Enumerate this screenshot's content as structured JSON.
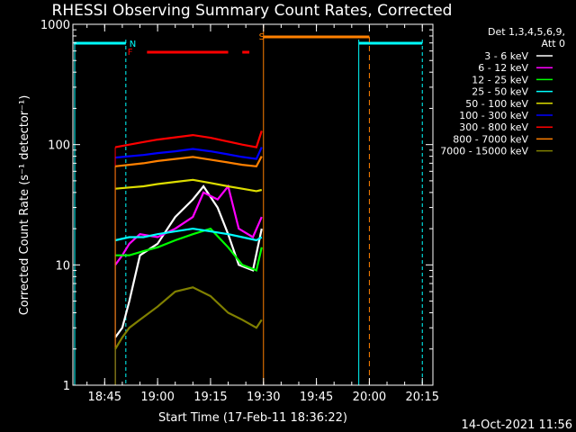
{
  "chart_data": {
    "type": "line",
    "title": "RHESSI Observing Summary Count Rates, Corrected",
    "xlabel": "Start Time (17-Feb-11 18:36:22)",
    "ylabel": "Corrected Count Rate (s⁻¹ detector⁻¹)",
    "yscale": "log",
    "ylim": [
      1,
      1000
    ],
    "xlim": [
      "18:36",
      "20:18"
    ],
    "x_ticks": [
      "18:45",
      "19:00",
      "19:15",
      "19:30",
      "19:45",
      "20:00",
      "20:15"
    ],
    "y_ticks": [
      "1",
      "10",
      "100",
      "1000"
    ],
    "legend_header": [
      "Det 1,3,4,5,6,9,",
      "Att 0"
    ],
    "legend_position": "right",
    "timestamp": "14-Oct-2021 11:56",
    "series": [
      {
        "name": "3 - 6 keV",
        "color": "#ffffff",
        "x": [
          "18:48",
          "18:50",
          "18:52",
          "18:55",
          "19:00",
          "19:05",
          "19:10",
          "19:13",
          "19:17",
          "19:20",
          "19:23",
          "19:27",
          "19:29.5"
        ],
        "values": [
          2.5,
          3,
          5,
          12,
          15,
          25,
          35,
          45,
          30,
          18,
          10,
          9,
          20
        ]
      },
      {
        "name": "6 - 12 keV",
        "color": "#ff00ff",
        "x": [
          "18:48",
          "18:50",
          "18:52",
          "18:55",
          "19:00",
          "19:05",
          "19:10",
          "19:13",
          "19:17",
          "19:20",
          "19:23",
          "19:27",
          "19:29.5"
        ],
        "values": [
          10,
          12,
          15,
          18,
          17,
          20,
          25,
          40,
          35,
          45,
          20,
          17,
          25
        ]
      },
      {
        "name": "12 - 25 keV",
        "color": "#00ff00",
        "x": [
          "18:48",
          "18:52",
          "18:56",
          "19:00",
          "19:05",
          "19:10",
          "19:15",
          "19:20",
          "19:24",
          "19:28",
          "19:29.5"
        ],
        "values": [
          12,
          12,
          13,
          14,
          16,
          18,
          20,
          14,
          10,
          9,
          14
        ]
      },
      {
        "name": "25 - 50 keV",
        "color": "#00ffff",
        "x": [
          "18:48",
          "18:52",
          "18:56",
          "19:00",
          "19:05",
          "19:10",
          "19:15",
          "19:20",
          "19:24",
          "19:28",
          "19:29.5"
        ],
        "values": [
          16,
          17,
          17,
          18,
          19,
          20,
          19,
          18,
          17,
          16,
          17
        ]
      },
      {
        "name": "50 - 100 keV",
        "color": "#dddd00",
        "x": [
          "18:48",
          "18:52",
          "18:56",
          "19:00",
          "19:05",
          "19:10",
          "19:15",
          "19:20",
          "19:24",
          "19:28",
          "19:29.5"
        ],
        "values": [
          43,
          44,
          45,
          47,
          49,
          51,
          48,
          45,
          43,
          41,
          42
        ]
      },
      {
        "name": "100 - 300 keV",
        "color": "#0000ff",
        "x": [
          "18:48",
          "18:52",
          "18:56",
          "19:00",
          "19:05",
          "19:10",
          "19:15",
          "19:20",
          "19:24",
          "19:28",
          "19:29.5"
        ],
        "values": [
          78,
          80,
          82,
          85,
          88,
          92,
          88,
          83,
          79,
          76,
          95
        ]
      },
      {
        "name": "300 - 800 keV",
        "color": "#ff0000",
        "x": [
          "18:48",
          "18:52",
          "18:56",
          "19:00",
          "19:05",
          "19:10",
          "19:15",
          "19:20",
          "19:24",
          "19:28",
          "19:29.5"
        ],
        "values": [
          95,
          100,
          105,
          110,
          115,
          120,
          114,
          106,
          100,
          95,
          130
        ]
      },
      {
        "name": "800 - 7000 keV",
        "color": "#ff8000",
        "x": [
          "18:48",
          "18:52",
          "18:56",
          "19:00",
          "19:05",
          "19:10",
          "19:15",
          "19:20",
          "19:24",
          "19:28",
          "19:29.5"
        ],
        "values": [
          66,
          68,
          70,
          73,
          76,
          79,
          75,
          71,
          68,
          66,
          80
        ]
      },
      {
        "name": "7000 - 15000 keV",
        "color": "#808000",
        "x": [
          "18:48",
          "18:50",
          "18:52",
          "18:55",
          "19:00",
          "19:05",
          "19:10",
          "19:15",
          "19:20",
          "19:24",
          "19:28",
          "19:29.5"
        ],
        "values": [
          2,
          2.5,
          3,
          3.5,
          4.5,
          6,
          6.5,
          5.5,
          4,
          3.5,
          3,
          3.5
        ]
      }
    ],
    "flags": {
      "night": {
        "label": "N",
        "color": "#00ffff"
      },
      "flare": {
        "label": "F",
        "color": "#ff0000"
      },
      "saa": {
        "label": "S",
        "color": "#ff8000"
      }
    }
  }
}
